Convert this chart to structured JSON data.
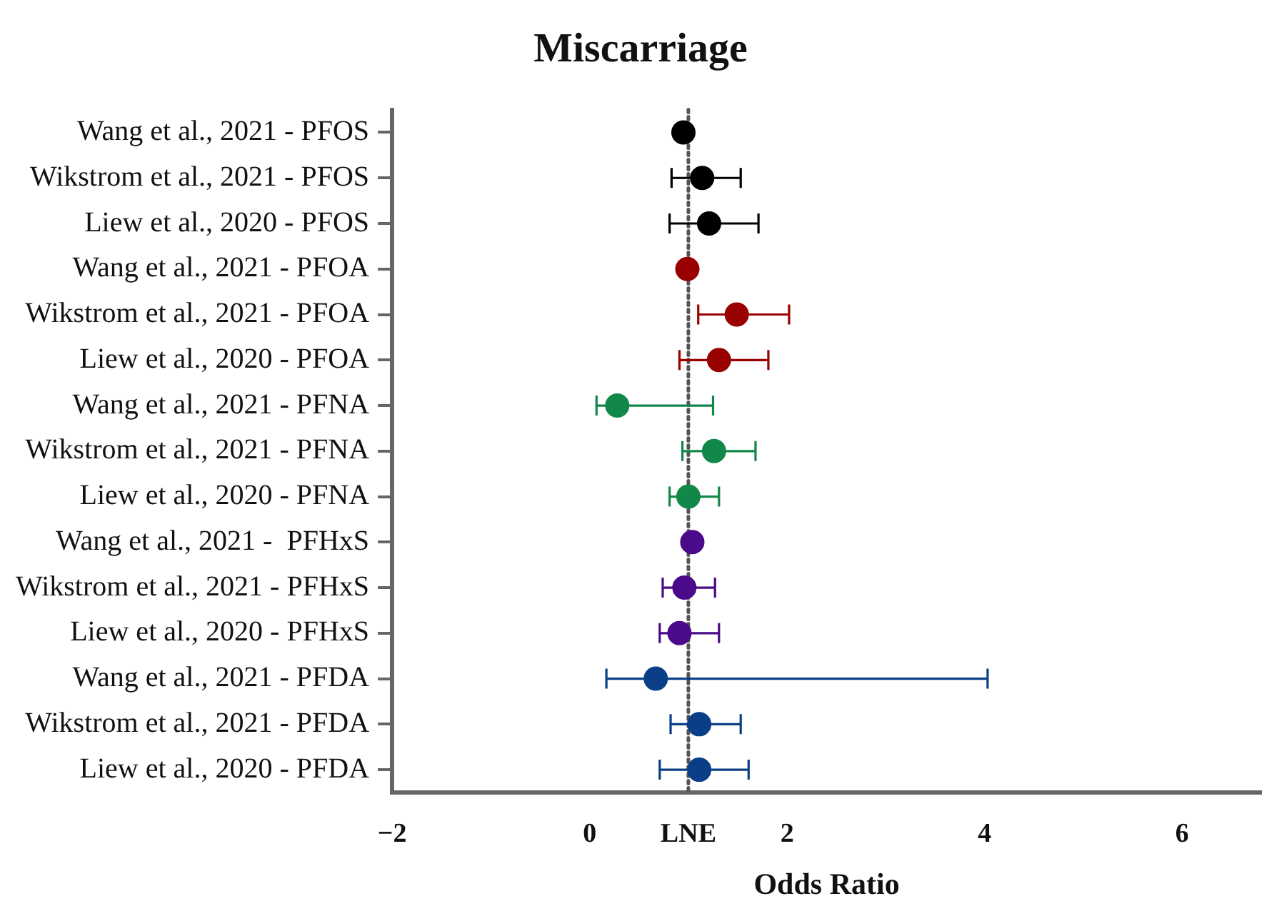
{
  "chart_data": {
    "type": "scatter",
    "orientation": "horizontal",
    "title": "Miscarriage",
    "xlabel": "Odds Ratio",
    "categories": [
      "Wang et al., 2021 - PFOS",
      "Wikstrom et al., 2021 - PFOS",
      "Liew et al., 2020 - PFOS",
      "Wang et al., 2021 - PFOA",
      "Wikstrom et al., 2021 - PFOA",
      "Liew et al., 2020 - PFOA",
      "Wang et al., 2021 - PFNA",
      "Wikstrom et al., 2021 - PFNA",
      "Liew et al., 2020 - PFNA",
      "Wang et al., 2021 -  PFHxS",
      "Wikstrom et al., 2021 - PFHxS",
      "Liew et al., 2020 - PFHxS",
      "Wang et al., 2021 - PFDA",
      "Wikstrom et al., 2021 - PFDA",
      "Liew et al., 2020 - PFDA"
    ],
    "values": [
      0.95,
      1.14,
      1.21,
      0.99,
      1.49,
      1.31,
      0.28,
      1.26,
      1.0,
      1.04,
      0.96,
      0.91,
      0.67,
      1.11,
      1.11
    ],
    "errors": [
      null,
      [
        0.83,
        1.53
      ],
      [
        0.81,
        1.71
      ],
      null,
      [
        1.1,
        2.02
      ],
      [
        0.91,
        1.81
      ],
      [
        0.07,
        1.25
      ],
      [
        0.94,
        1.68
      ],
      [
        0.81,
        1.31
      ],
      null,
      [
        0.74,
        1.27
      ],
      [
        0.71,
        1.31
      ],
      [
        0.17,
        4.03
      ],
      [
        0.82,
        1.53
      ],
      [
        0.71,
        1.61
      ]
    ],
    "colors": [
      "#000000",
      "#000000",
      "#000000",
      "#990000",
      "#990000",
      "#990000",
      "#12874a",
      "#12874a",
      "#12874a",
      "#4b0a8a",
      "#4b0a8a",
      "#4b0a8a",
      "#0a3f88",
      "#0a3f88",
      "#0a3f88"
    ],
    "xlim": [
      -2,
      6.8
    ],
    "xticks": [
      -2,
      0,
      {
        "value": 1,
        "label": "LNE"
      },
      2,
      4,
      6
    ],
    "ref_lines": [
      {
        "axis": "x",
        "value": 1,
        "color": "#555555",
        "line_style": "dotted"
      }
    ],
    "grid": false,
    "legend": false,
    "marker": "circle"
  }
}
